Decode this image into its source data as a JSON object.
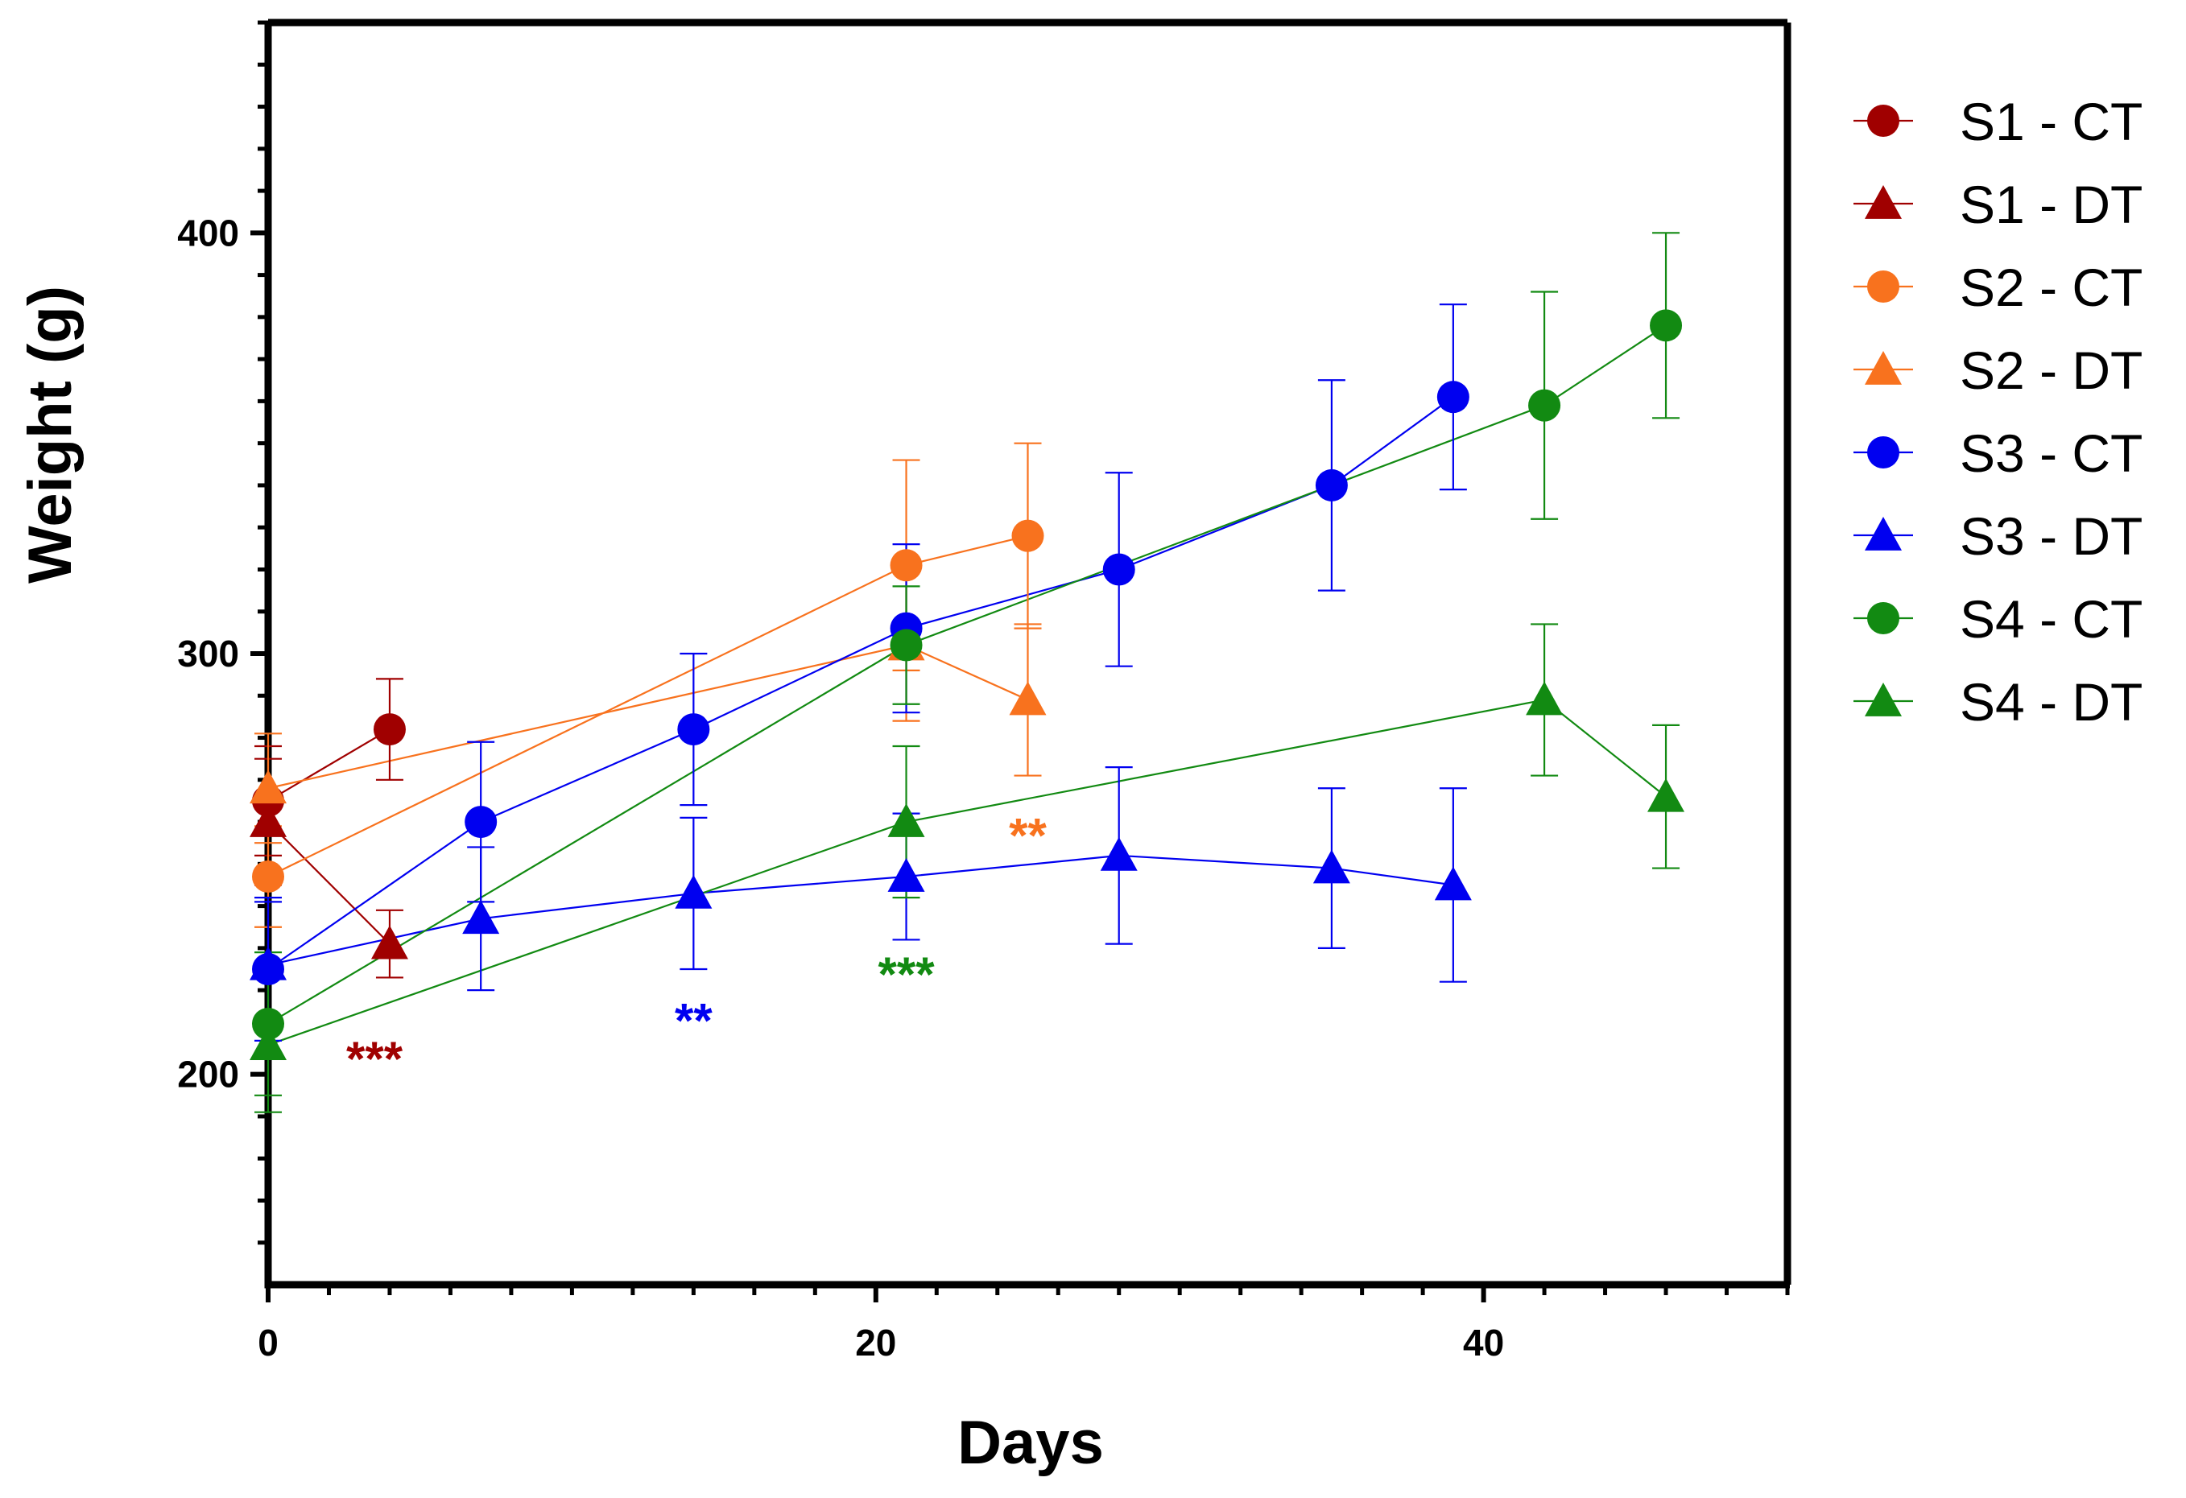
{
  "chart_data": {
    "type": "line",
    "title": "",
    "xlabel": "Days",
    "ylabel": "Weight (g)",
    "xlim": [
      0,
      50
    ],
    "ylim": [
      150,
      450
    ],
    "x_major_ticks": [
      0,
      20,
      40
    ],
    "x_tick_labels": [
      "0",
      "20",
      "40"
    ],
    "x_minor_step": 2,
    "y_major_ticks": [
      200,
      300,
      400
    ],
    "y_tick_labels": [
      "200",
      "300",
      "400"
    ],
    "y_minor_step": 10,
    "grid": false,
    "legend_position": "right",
    "series": [
      {
        "name": "S1 - CT",
        "color": "#a00000",
        "marker": "circle",
        "x": [
          0,
          4
        ],
        "y": [
          265,
          282
        ],
        "err": [
          13,
          12
        ]
      },
      {
        "name": "S1 - DT",
        "color": "#a00000",
        "marker": "triangle",
        "x": [
          0,
          4
        ],
        "y": [
          260,
          231
        ],
        "err": [
          15,
          8
        ]
      },
      {
        "name": "S2 - CT",
        "color": "#f8721e",
        "marker": "circle",
        "x": [
          0,
          21,
          25
        ],
        "y": [
          247,
          321,
          328
        ],
        "err": [
          12,
          25,
          22
        ]
      },
      {
        "name": "S2 - DT",
        "color": "#f8721e",
        "marker": "triangle",
        "x": [
          0,
          21,
          25
        ],
        "y": [
          268,
          302,
          289
        ],
        "err": [
          13,
          18,
          18
        ]
      },
      {
        "name": "S3 - CT",
        "color": "#0000f0",
        "marker": "circle",
        "x": [
          0,
          7,
          14,
          21,
          28,
          35,
          39
        ],
        "y": [
          225,
          260,
          282,
          306,
          320,
          340,
          361
        ],
        "err": [
          17,
          19,
          18,
          20,
          23,
          25,
          22
        ]
      },
      {
        "name": "S3 - DT",
        "color": "#0000f0",
        "marker": "triangle",
        "x": [
          0,
          7,
          14,
          21,
          28,
          35,
          39
        ],
        "y": [
          226,
          237,
          243,
          247,
          252,
          249,
          245
        ],
        "err": [
          15,
          17,
          18,
          15,
          21,
          19,
          23
        ]
      },
      {
        "name": "S4 - CT",
        "color": "#128a12",
        "marker": "circle",
        "x": [
          0,
          21,
          42,
          46
        ],
        "y": [
          212,
          302,
          359,
          378
        ],
        "err": [
          17,
          14,
          27,
          22
        ]
      },
      {
        "name": "S4 - DT",
        "color": "#128a12",
        "marker": "triangle",
        "x": [
          0,
          21,
          42,
          46
        ],
        "y": [
          207,
          260,
          289,
          266
        ],
        "err": [
          16,
          18,
          18,
          17
        ]
      }
    ],
    "annotations": [
      {
        "text": "***",
        "color": "#a00000",
        "x": 3.5,
        "y": 204
      },
      {
        "text": "**",
        "color": "#0000f0",
        "x": 14,
        "y": 213
      },
      {
        "text": "***",
        "color": "#128a12",
        "x": 21,
        "y": 224
      },
      {
        "text": "**",
        "color": "#f8721e",
        "x": 25,
        "y": 257
      }
    ]
  }
}
